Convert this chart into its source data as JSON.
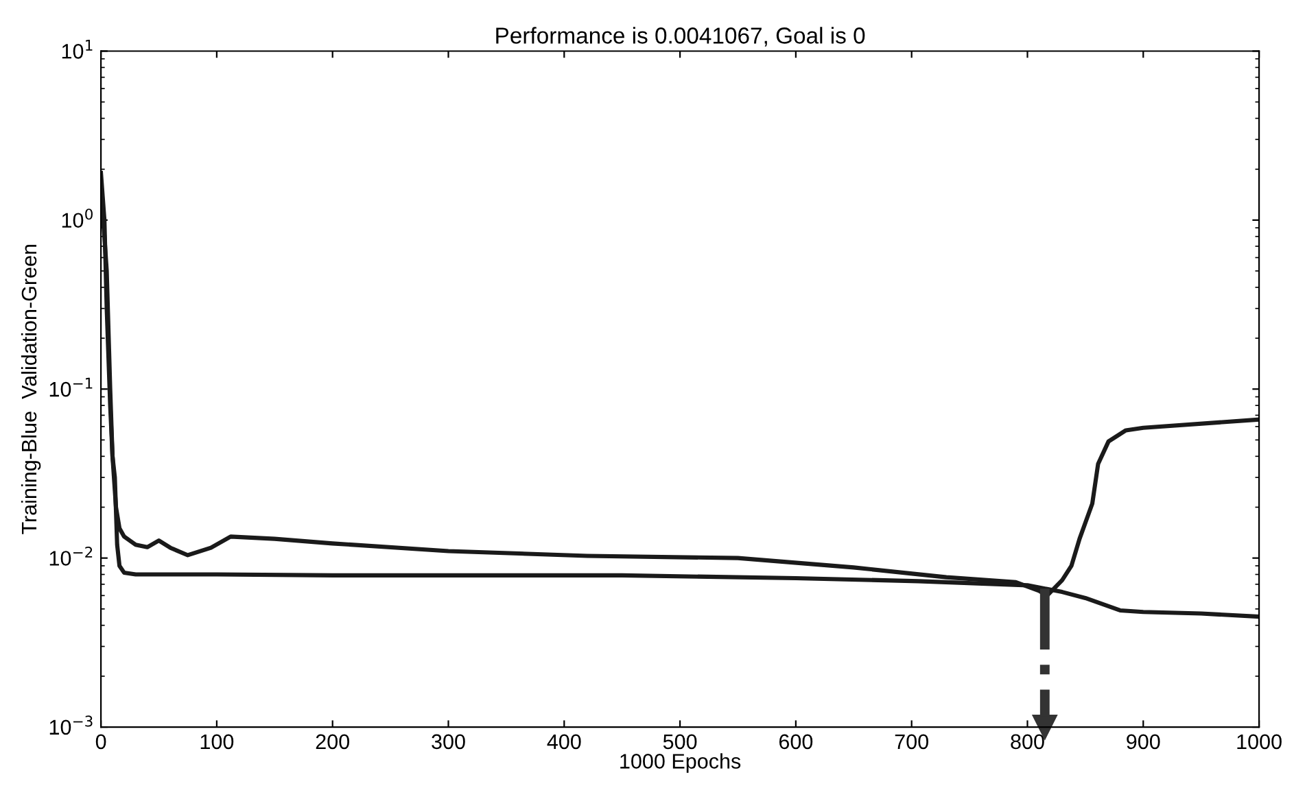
{
  "chart_data": {
    "type": "line",
    "title": "Performance is 0.0041067, Goal is 0",
    "xlabel": "1000 Epochs",
    "ylabel": "Training-Blue  Validation-Green",
    "log": "y",
    "xlim": [
      0,
      1000
    ],
    "ylim": [
      0.001,
      10
    ],
    "xticks": [
      0,
      100,
      200,
      300,
      400,
      500,
      600,
      700,
      800,
      900,
      1000
    ],
    "yticks": [
      {
        "value": 0.001,
        "label": "10$^{−3}$"
      },
      {
        "value": 0.01,
        "label": "10$^{−2}$"
      },
      {
        "value": 0.1,
        "label": "10$^{−1}$"
      },
      {
        "value": 1,
        "label": "10$^{0}$"
      },
      {
        "value": 10,
        "label": "10$^{1}$"
      }
    ],
    "grid": false,
    "legend": false,
    "line_style": "solid",
    "marker": "none",
    "series": [
      {
        "color": "#1a1a1a",
        "x": [
          0,
          3,
          5,
          8,
          10,
          12,
          14,
          16,
          20,
          30,
          60,
          100,
          200,
          300,
          450,
          600,
          706,
          800,
          830,
          850,
          880,
          900,
          950,
          1000
        ],
        "values": [
          1.9,
          1.0,
          0.3,
          0.08,
          0.04,
          0.03,
          0.012,
          0.009,
          0.0082,
          0.008,
          0.008,
          0.008,
          0.0079,
          0.0079,
          0.0079,
          0.0076,
          0.0073,
          0.0069,
          0.0063,
          0.0058,
          0.0049,
          0.0048,
          0.0047,
          0.0045
        ]
      },
      {
        "color": "#1a1a1a",
        "x": [
          0,
          3,
          5,
          8,
          10,
          13,
          16,
          20,
          30,
          40,
          50,
          60,
          75,
          95,
          112,
          150,
          200,
          300,
          420,
          550,
          650,
          730,
          790,
          810,
          817,
          830,
          838,
          845,
          856,
          861,
          870,
          885,
          900,
          1000
        ],
        "values": [
          1.5,
          0.8,
          0.5,
          0.1,
          0.04,
          0.02,
          0.015,
          0.0134,
          0.012,
          0.0116,
          0.0127,
          0.0115,
          0.0104,
          0.0115,
          0.0134,
          0.013,
          0.0122,
          0.011,
          0.0103,
          0.01,
          0.0088,
          0.0077,
          0.0072,
          0.0064,
          0.006,
          0.0074,
          0.009,
          0.013,
          0.021,
          0.036,
          0.049,
          0.057,
          0.059,
          0.066
        ]
      }
    ],
    "ref_lines": [
      {
        "axis": "x",
        "value": 815,
        "line_style": "dashdot",
        "color": "#333333"
      }
    ]
  }
}
